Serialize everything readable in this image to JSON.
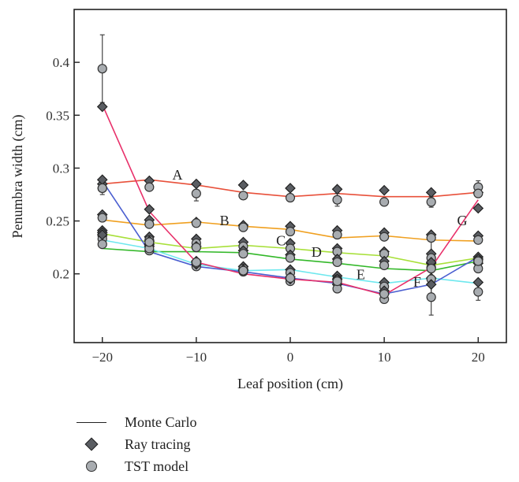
{
  "chart_data": {
    "type": "line",
    "xlabel": "Leaf position (cm)",
    "ylabel": "Penumbra width (cm)",
    "xlim": [
      -23,
      23
    ],
    "ylim": [
      0.135,
      0.45
    ],
    "xticks": [
      -20,
      -10,
      0,
      10,
      20
    ],
    "xtick_labels": [
      "−20",
      "−10",
      "0",
      "10",
      "20"
    ],
    "yticks": [
      0.2,
      0.25,
      0.3,
      0.35,
      0.4
    ],
    "ytick_labels": [
      "0.2",
      "0.25",
      "0.3",
      "0.35",
      "0.4"
    ],
    "x": [
      -20,
      -15,
      -10,
      -5,
      0,
      5,
      10,
      15,
      20
    ],
    "grid": false,
    "legend_position": "below",
    "legend": [
      {
        "label": "Monte Carlo",
        "symbol": "line"
      },
      {
        "label": "Ray tracing",
        "symbol": "diamond"
      },
      {
        "label": "TST model",
        "symbol": "circle"
      }
    ],
    "series": [
      {
        "name": "A",
        "color": "#e8503a",
        "label_at": [
          -12,
          0.289
        ],
        "monte_carlo": [
          0.285,
          0.289,
          0.284,
          0.277,
          0.273,
          0.276,
          0.273,
          0.273,
          0.277
        ],
        "ray_tracing": [
          0.285,
          0.288,
          0.285,
          0.284,
          0.281,
          0.28,
          0.279,
          0.277,
          0.277
        ],
        "tst_model": [
          0.281,
          0.282,
          0.276,
          0.274,
          0.272,
          0.27,
          0.268,
          0.268,
          0.282
        ],
        "tst_error": [
          0,
          0,
          0.007,
          0,
          0,
          0.006,
          0,
          0.005,
          0.006
        ]
      },
      {
        "name": "B",
        "color": "#f0a020",
        "label_at": [
          -7,
          0.246
        ],
        "monte_carlo": [
          0.251,
          0.246,
          0.249,
          0.245,
          0.242,
          0.234,
          0.236,
          0.232,
          0.231
        ],
        "ray_tracing": [
          0.256,
          0.251,
          0.249,
          0.246,
          0.245,
          0.241,
          0.239,
          0.237,
          0.236
        ],
        "tst_model": [
          0.253,
          0.247,
          0.248,
          0.244,
          0.24,
          0.237,
          0.235,
          0.234,
          0.232
        ],
        "tst_error": [
          0,
          0,
          0,
          0,
          0,
          0,
          0,
          0,
          0
        ]
      },
      {
        "name": "C",
        "color": "#a8e03a",
        "label_at": [
          -1,
          0.227
        ],
        "monte_carlo": [
          0.238,
          0.23,
          0.224,
          0.227,
          0.224,
          0.22,
          0.217,
          0.208,
          0.215
        ],
        "ray_tracing": [
          0.241,
          0.235,
          0.233,
          0.23,
          0.229,
          0.224,
          0.221,
          0.219,
          0.216
        ],
        "tst_model": [
          0.236,
          0.232,
          0.229,
          0.226,
          0.224,
          0.221,
          0.219,
          0.215,
          0.213
        ],
        "tst_error": [
          0,
          0,
          0,
          0,
          0,
          0,
          0,
          0,
          0
        ]
      },
      {
        "name": "D",
        "color": "#33b829",
        "label_at": [
          2.8,
          0.216
        ],
        "monte_carlo": [
          0.224,
          0.221,
          0.221,
          0.22,
          0.214,
          0.21,
          0.205,
          0.203,
          0.212
        ],
        "ray_tracing": [
          0.239,
          0.231,
          0.226,
          0.222,
          0.218,
          0.214,
          0.212,
          0.21,
          0.21
        ],
        "tst_model": [
          0.233,
          0.228,
          0.225,
          0.219,
          0.215,
          0.211,
          0.208,
          0.206,
          0.205
        ],
        "tst_error": [
          0,
          0,
          0,
          0,
          0,
          0,
          0,
          0,
          0
        ]
      },
      {
        "name": "E",
        "color": "#6ee8ee",
        "label_at": [
          7.5,
          0.195
        ],
        "monte_carlo": [
          0.232,
          0.224,
          0.209,
          0.203,
          0.204,
          0.197,
          0.191,
          0.196,
          0.191
        ],
        "ray_tracing": [
          0.237,
          0.228,
          0.211,
          0.207,
          0.204,
          0.198,
          0.192,
          0.196,
          0.192
        ],
        "tst_model": [
          0.228,
          0.222,
          0.207,
          0.205,
          0.201,
          0.195,
          0.188,
          0.195,
          0.183
        ],
        "tst_error": [
          0,
          0,
          0,
          0,
          0,
          0,
          0,
          0,
          0.008
        ]
      },
      {
        "name": "F",
        "color": "#4a5ed0",
        "label_at": [
          13.5,
          0.188
        ],
        "monte_carlo": [
          0.288,
          0.221,
          0.207,
          0.202,
          0.196,
          0.191,
          0.181,
          0.19,
          0.216
        ],
        "ray_tracing": [
          0.289,
          0.226,
          0.209,
          0.203,
          0.197,
          0.19,
          0.184,
          0.19,
          0.214
        ],
        "tst_model": [
          0.281,
          0.224,
          0.21,
          0.202,
          0.193,
          0.186,
          0.176,
          0.178,
          0.212
        ],
        "tst_error": [
          0.006,
          0,
          0,
          0,
          0,
          0,
          0,
          0.017,
          0
        ]
      },
      {
        "name": "G",
        "color": "#e8306a",
        "label_at": [
          18.3,
          0.246
        ],
        "monte_carlo": [
          0.36,
          0.259,
          0.211,
          0.2,
          0.195,
          0.192,
          0.18,
          0.206,
          0.27
        ],
        "ray_tracing": [
          0.358,
          0.261,
          0.212,
          0.204,
          0.195,
          0.195,
          0.181,
          0.211,
          0.262
        ],
        "tst_model": [
          0.394,
          0.23,
          0.211,
          0.203,
          0.196,
          0.193,
          0.181,
          0.205,
          0.276
        ],
        "tst_error": [
          0.032,
          0,
          0,
          0,
          0,
          0,
          0,
          0.028,
          0
        ]
      }
    ]
  }
}
